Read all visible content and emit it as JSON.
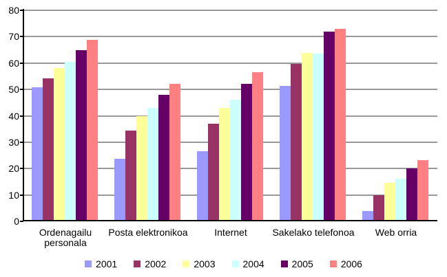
{
  "chart_data": {
    "type": "bar",
    "title": "",
    "xlabel": "",
    "ylabel": "",
    "ylim": [
      0,
      80
    ],
    "ytick_interval": 10,
    "yticks": [
      0,
      10,
      20,
      30,
      40,
      50,
      60,
      70,
      80
    ],
    "grid": true,
    "legend_position": "bottom",
    "categories": [
      "Ordenagailu personala",
      "Posta elektronikoa",
      "Internet",
      "Sakelako telefonoa",
      "Web orria"
    ],
    "series": [
      {
        "name": "2001",
        "color": "#9999FF",
        "values": [
          50.7,
          23.7,
          26.5,
          51.4,
          4.0
        ]
      },
      {
        "name": "2002",
        "color": "#993366",
        "values": [
          54.3,
          34.5,
          37.0,
          59.7,
          9.8
        ]
      },
      {
        "name": "2003",
        "color": "#FFFF99",
        "values": [
          58.0,
          40.0,
          43.0,
          63.9,
          14.5
        ]
      },
      {
        "name": "2004",
        "color": "#CCFFFF",
        "values": [
          60.5,
          43.0,
          46.2,
          63.6,
          16.2
        ]
      },
      {
        "name": "2005",
        "color": "#660066",
        "values": [
          64.8,
          48.0,
          52.0,
          71.8,
          20.0
        ]
      },
      {
        "name": "2006",
        "color": "#FF8080",
        "values": [
          68.7,
          52.2,
          56.5,
          72.9,
          23.3
        ]
      }
    ]
  },
  "colors": {
    "background": "#FFFFFF",
    "gridline": "#989898",
    "axis": "#000000",
    "text": "#000000"
  }
}
